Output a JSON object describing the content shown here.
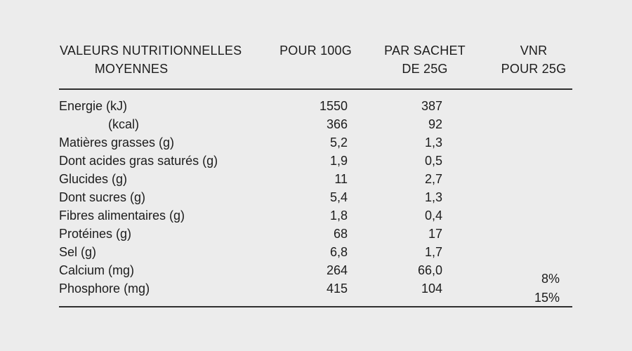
{
  "page": {
    "background_color": "#ececec",
    "text_color": "#1c1c1c",
    "rule_color": "#2f2f2f"
  },
  "table": {
    "header": {
      "col1_line1": "VALEURS NUTRITIONNELLES",
      "col1_line2": "MOYENNES",
      "col2": "POUR 100G",
      "col3_line1": "PAR SACHET",
      "col3_line2": "DE 25G",
      "col4_line1": "VNR",
      "col4_line2": "POUR 25G"
    },
    "rows": [
      {
        "label": "Energie (kJ)",
        "per_100g": "1550",
        "per_sachet_25g": "387",
        "vnr": ""
      },
      {
        "label": "(kcal)",
        "per_100g": "366",
        "per_sachet_25g": "92",
        "vnr": ""
      },
      {
        "label": "Matières grasses (g)",
        "per_100g": "5,2",
        "per_sachet_25g": "1,3",
        "vnr": ""
      },
      {
        "label": "Dont acides gras saturés (g)",
        "per_100g": "1,9",
        "per_sachet_25g": "0,5",
        "vnr": ""
      },
      {
        "label": "Glucides (g)",
        "per_100g": "11",
        "per_sachet_25g": "2,7",
        "vnr": ""
      },
      {
        "label": "Dont sucres (g)",
        "per_100g": "5,4",
        "per_sachet_25g": "1,3",
        "vnr": ""
      },
      {
        "label": "Fibres alimentaires (g)",
        "per_100g": "1,8",
        "per_sachet_25g": "0,4",
        "vnr": ""
      },
      {
        "label": "Protéines (g)",
        "per_100g": "68",
        "per_sachet_25g": "17",
        "vnr": ""
      },
      {
        "label": "Sel (g)",
        "per_100g": "6,8",
        "per_sachet_25g": "1,7",
        "vnr": ""
      },
      {
        "label": "Calcium (mg)",
        "per_100g": "264",
        "per_sachet_25g": "66,0",
        "vnr": "8%"
      },
      {
        "label": "Phosphore (mg)",
        "per_100g": "415",
        "per_sachet_25g": "104",
        "vnr": "15%"
      }
    ]
  }
}
